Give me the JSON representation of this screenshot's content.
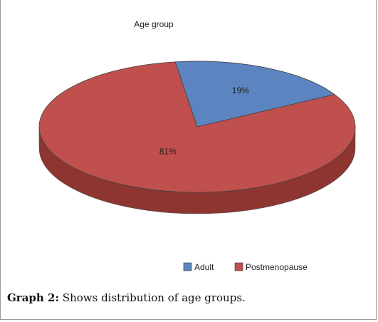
{
  "chart_data": {
    "type": "pie",
    "title": "Age group",
    "categories": [
      "Adult",
      "Postmenopause"
    ],
    "values": [
      19,
      81
    ],
    "labels": [
      "19%",
      "81%"
    ],
    "colors": [
      "#5b84c1",
      "#c0504d"
    ],
    "side_colors": [
      "#3f659e",
      "#8e3531"
    ],
    "legend": "bottom-right",
    "three_d": true
  },
  "caption": {
    "label": "Graph 2:",
    "text": " Shows distribution of age groups."
  }
}
